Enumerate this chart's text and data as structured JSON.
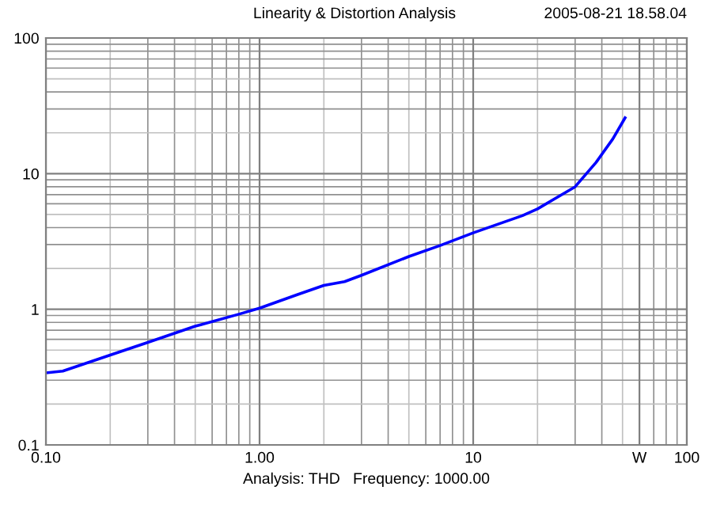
{
  "chart_data": {
    "type": "line",
    "title": "Linearity & Distortion Analysis",
    "xlabel": "Analysis: THD   Frequency: 1000.00",
    "annotations": [
      "2005-08-21 18.58.04"
    ],
    "x": [
      0.1,
      0.12,
      0.2,
      0.3,
      0.5,
      0.8,
      1.0,
      1.5,
      2.0,
      2.5,
      3,
      5,
      7,
      10,
      17,
      20,
      30,
      37.6,
      45,
      51.4
    ],
    "series": [
      {
        "color": "#0000ff",
        "values": [
          0.34,
          0.35,
          0.46,
          0.57,
          0.75,
          0.92,
          1.02,
          1.28,
          1.5,
          1.6,
          1.78,
          2.45,
          2.95,
          3.66,
          4.9,
          5.5,
          8.0,
          12.1,
          18,
          25.8
        ]
      }
    ],
    "log": "xy",
    "xlim": [
      0.1,
      100
    ],
    "ylim": [
      0.1,
      100
    ],
    "xticks": [
      {
        "value": 0.1,
        "label": "0.10"
      },
      {
        "value": 1,
        "label": "1.00"
      },
      10,
      {
        "value": 60,
        "label": "W"
      },
      100
    ],
    "yticks": [
      0.1,
      1,
      10,
      100
    ],
    "grid": true,
    "marker": "none",
    "line_style": "solid"
  }
}
